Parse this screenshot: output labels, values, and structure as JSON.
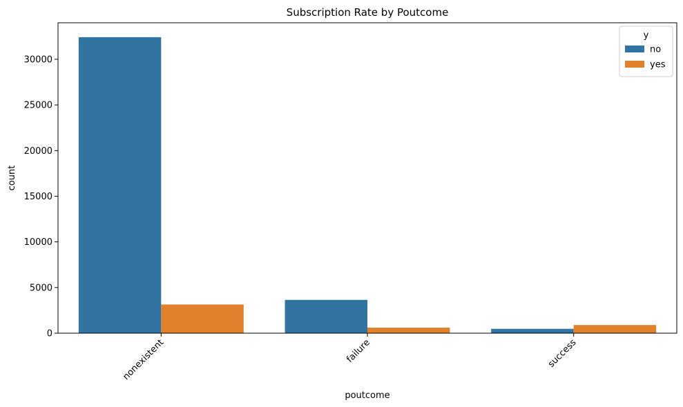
{
  "chart_data": {
    "type": "bar",
    "title": "Subscription Rate by Poutcome",
    "xlabel": "poutcome",
    "ylabel": "count",
    "categories": [
      "nonexistent",
      "failure",
      "success"
    ],
    "series": [
      {
        "name": "no",
        "color": "#3274a1",
        "values": [
          32422,
          3647,
          479
        ]
      },
      {
        "name": "yes",
        "color": "#e1812c",
        "values": [
          3141,
          605,
          894
        ]
      }
    ],
    "ylim": [
      0,
      34000
    ],
    "yticks": [
      0,
      5000,
      10000,
      15000,
      20000,
      25000,
      30000
    ],
    "legend": {
      "title": "y",
      "placement": "top-right"
    },
    "grid": false,
    "x_tick_rotation": -45
  }
}
